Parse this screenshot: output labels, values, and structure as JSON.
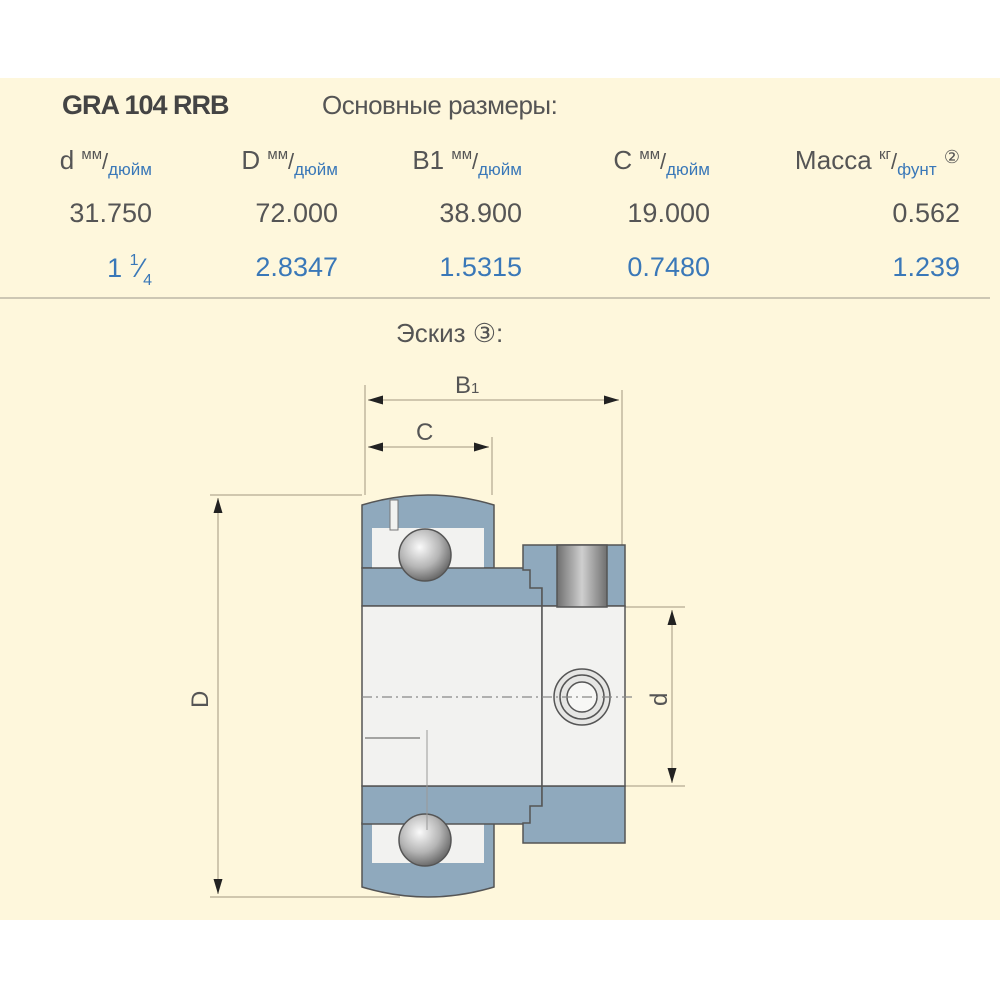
{
  "product": {
    "code": "GRA 104 RRB",
    "section_title": "Основные размеры:"
  },
  "table": {
    "columns": [
      {
        "symbol": "d",
        "unit_top": "мм",
        "unit_bottom": "дюйм",
        "mm": "31.750",
        "inch_whole": "1",
        "inch_num": "1",
        "inch_den": "4"
      },
      {
        "symbol": "D",
        "unit_top": "мм",
        "unit_bottom": "дюйм",
        "mm": "72.000",
        "inch": "2.8347"
      },
      {
        "symbol": "B1",
        "unit_top": "мм",
        "unit_bottom": "дюйм",
        "mm": "38.900",
        "inch": "1.5315"
      },
      {
        "symbol": "C",
        "unit_top": "мм",
        "unit_bottom": "дюйм",
        "mm": "19.000",
        "inch": "0.7480"
      },
      {
        "symbol": "Масса",
        "unit_top": "кг",
        "unit_bottom": "фунт",
        "note": "②",
        "mm": "0.562",
        "inch": "1.239"
      }
    ]
  },
  "sketch": {
    "title": "Эскиз ③:",
    "labels": {
      "B1": "B",
      "B1_sub": "1",
      "C": "C",
      "D": "D",
      "d": "d"
    }
  },
  "colors": {
    "background": "#fef7dc",
    "inch_text": "#3a78b8",
    "steel": "#8fa9bd",
    "bore": "#f2f2f0"
  }
}
